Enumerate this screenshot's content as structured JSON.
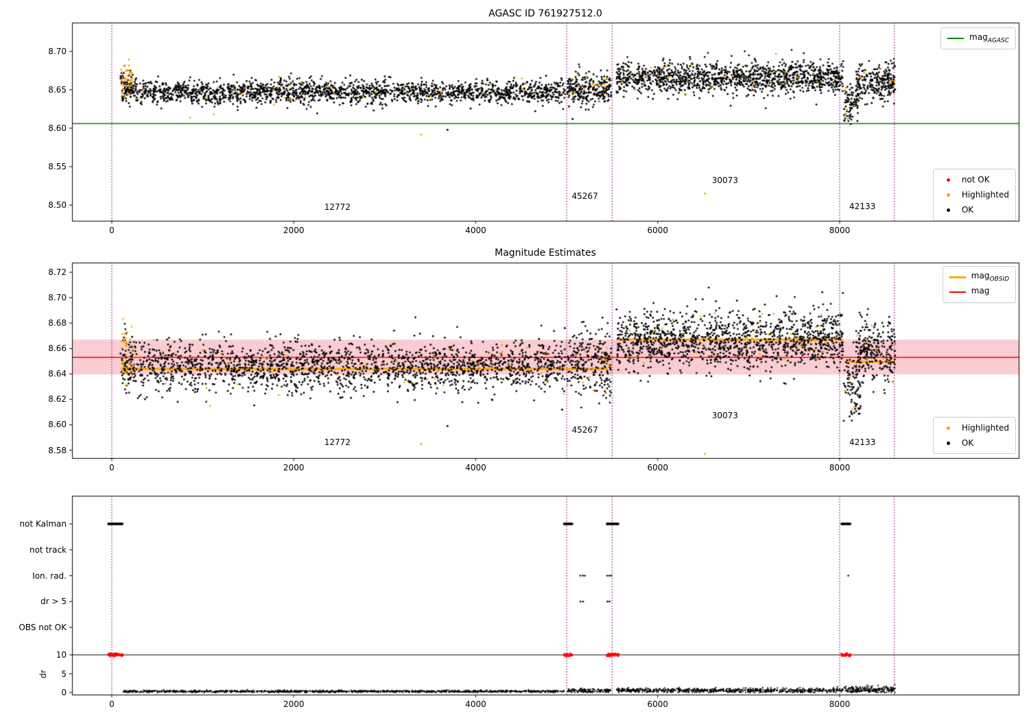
{
  "colors": {
    "ok": "#000000",
    "highlighted": "#ffa500",
    "not_ok": "#ff0000",
    "mag": "#ff0000",
    "mag_agasc": "#008000",
    "mag_obsid": "#ffa500",
    "vline": "#800080",
    "band": "#f9cdd3",
    "dr_line": "#000000"
  },
  "chart_data": [
    {
      "type": "scatter",
      "title": "AGASC ID 761927512.0",
      "xlim": [
        -437,
        9968
      ],
      "ylim": [
        8.4795,
        8.7375
      ],
      "xticks": [
        0,
        2000,
        4000,
        6000,
        8000
      ],
      "xtick_labels": [
        "0",
        "2000",
        "4000",
        "6000",
        "8000"
      ],
      "yticks": [
        8.5,
        8.55,
        8.6,
        8.65,
        8.7
      ],
      "ytick_labels": [
        "8.50",
        "8.55",
        "8.60",
        "8.65",
        "8.70"
      ],
      "vlines": [
        0,
        5000,
        5500,
        8000,
        8600
      ],
      "hline": {
        "value": 8.606,
        "color_key": "mag_agasc"
      },
      "legend_line": {
        "label_main": "mag",
        "label_sub": "AGASC"
      },
      "legend_points": [
        {
          "label": "not OK",
          "color_key": "not_ok"
        },
        {
          "label": "Highlighted",
          "color_key": "highlighted"
        },
        {
          "label": "OK",
          "color_key": "ok"
        }
      ],
      "annotations": [
        {
          "text": "12772",
          "x": 2480,
          "y": 8.497
        },
        {
          "text": "45267",
          "x": 5200,
          "y": 8.512
        },
        {
          "text": "30073",
          "x": 6740,
          "y": 8.532
        },
        {
          "text": "42133",
          "x": 8250,
          "y": 8.498
        }
      ],
      "segments": [
        {
          "x0": 95,
          "x1": 235,
          "n": 65,
          "mean": 8.663,
          "sd": 0.01,
          "hl": 0.6
        },
        {
          "x0": 110,
          "x1": 4985,
          "n": 2000,
          "mean": 8.6465,
          "sd": 0.0075,
          "hl": 0.022
        },
        {
          "x0": 5005,
          "x1": 5490,
          "n": 270,
          "mean": 8.65,
          "sd": 0.0105,
          "hl": 0.05
        },
        {
          "x0": 5545,
          "x1": 8040,
          "n": 1350,
          "mean": 8.666,
          "sd": 0.0105,
          "hl": 0.02
        },
        {
          "x0": 8045,
          "x1": 8230,
          "n": 95,
          "mean": 8.634,
          "sd": 0.0125,
          "hl": 0.04
        },
        {
          "x0": 8180,
          "x1": 8610,
          "n": 260,
          "mean": 8.66,
          "sd": 0.012,
          "hl": 0.05
        }
      ],
      "outliers": [
        {
          "x": 3400,
          "y": 8.592,
          "hl": true
        },
        {
          "x": 3690,
          "y": 8.598,
          "hl": false
        },
        {
          "x": 6520,
          "y": 8.515,
          "hl": true
        },
        {
          "x": 860,
          "y": 8.614,
          "hl": true
        },
        {
          "x": 1120,
          "y": 8.618,
          "hl": true
        },
        {
          "x": 5065,
          "y": 8.612,
          "hl": false
        }
      ]
    },
    {
      "type": "scatter",
      "title": "Magnitude Estimates",
      "xlim": [
        -437,
        9968
      ],
      "ylim": [
        8.5738,
        8.7276
      ],
      "xticks": [
        0,
        2000,
        4000,
        6000,
        8000
      ],
      "xtick_labels": [
        "0",
        "2000",
        "4000",
        "6000",
        "8000"
      ],
      "yticks": [
        8.58,
        8.6,
        8.62,
        8.64,
        8.66,
        8.68,
        8.7,
        8.72
      ],
      "ytick_labels": [
        "8.58",
        "8.60",
        "8.62",
        "8.64",
        "8.66",
        "8.68",
        "8.70",
        "8.72"
      ],
      "vlines": [
        0,
        5000,
        5500,
        8000,
        8600
      ],
      "band": [
        8.6395,
        8.667
      ],
      "mag_line": {
        "value": 8.653,
        "color_key": "mag"
      },
      "obsid_lines": [
        [
          100,
          5450,
          8.644
        ],
        [
          5550,
          8040,
          8.667
        ],
        [
          8050,
          8610,
          8.6495
        ]
      ],
      "legend_lines": [
        {
          "label_main": "mag",
          "label_sub": "OBSID",
          "color_key": "mag_obsid"
        },
        {
          "label_main": "mag",
          "color_key": "mag"
        }
      ],
      "legend_points": [
        {
          "label": "Highlighted",
          "color_key": "highlighted"
        },
        {
          "label": "OK",
          "color_key": "ok"
        }
      ],
      "annotations": [
        {
          "text": "12772",
          "x": 2480,
          "y": 8.586
        },
        {
          "text": "45267",
          "x": 5200,
          "y": 8.596
        },
        {
          "text": "30073",
          "x": 6740,
          "y": 8.607
        },
        {
          "text": "42133",
          "x": 8250,
          "y": 8.586
        }
      ],
      "segments": [
        {
          "x0": 95,
          "x1": 235,
          "n": 65,
          "mean": 8.651,
          "sd": 0.0125,
          "hl": 0.55
        },
        {
          "x0": 110,
          "x1": 4985,
          "n": 2000,
          "mean": 8.6455,
          "sd": 0.0095,
          "hl": 0.03
        },
        {
          "x0": 5005,
          "x1": 5490,
          "n": 270,
          "mean": 8.649,
          "sd": 0.013,
          "hl": 0.06
        },
        {
          "x0": 5545,
          "x1": 8040,
          "n": 1350,
          "mean": 8.667,
          "sd": 0.011,
          "hl": 0.025
        },
        {
          "x0": 8045,
          "x1": 8230,
          "n": 95,
          "mean": 8.631,
          "sd": 0.013,
          "hl": 0.04
        },
        {
          "x0": 8180,
          "x1": 8610,
          "n": 260,
          "mean": 8.658,
          "sd": 0.013,
          "hl": 0.06
        }
      ],
      "outliers": [
        {
          "x": 3400,
          "y": 8.585,
          "hl": true
        },
        {
          "x": 3690,
          "y": 8.599,
          "hl": false
        },
        {
          "x": 6520,
          "y": 8.577,
          "hl": true
        },
        {
          "x": 4950,
          "y": 8.612,
          "hl": false
        },
        {
          "x": 1080,
          "y": 8.615,
          "hl": true
        },
        {
          "x": 8140,
          "y": 8.612,
          "hl": true
        },
        {
          "x": 8160,
          "y": 8.614,
          "hl": true
        }
      ]
    },
    {
      "type": "flags",
      "xlim": [
        -437,
        9968
      ],
      "xticks": [
        0,
        2000,
        4000,
        6000,
        8000
      ],
      "xtick_labels": [
        "0",
        "2000",
        "4000",
        "6000",
        "8000"
      ],
      "vlines": [
        0,
        5000,
        5500,
        8000,
        8600
      ],
      "rows": [
        "not Kalman",
        "not track",
        "Ion. rad.",
        "dr > 5",
        "OBS not OK"
      ],
      "ylabel": "dr",
      "dr_ticks": [
        10,
        5,
        0
      ],
      "dr_tick_labels": [
        "10",
        "5",
        "0"
      ],
      "dr_hline": 10,
      "flags": {
        "not_kalman_intervals": [
          [
            -40,
            120
          ],
          [
            4970,
            5060
          ],
          [
            5440,
            5570
          ],
          [
            8020,
            8120
          ]
        ],
        "not_track_x": [],
        "ion_rad_x": [
          5150,
          5178,
          5200,
          5445,
          5468,
          5490,
          8095
        ],
        "dr_gt5_x": [
          5152,
          5180,
          5448,
          5472
        ],
        "obs_not_ok_x": []
      },
      "dr_red_intervals": [
        [
          -40,
          120
        ],
        [
          4970,
          5060
        ],
        [
          5440,
          5570
        ],
        [
          8020,
          8120
        ]
      ],
      "dr_trace_segments": [
        {
          "x0": 120,
          "x1": 4980,
          "n": 1150,
          "mean": 0.3,
          "sd": 0.15
        },
        {
          "x0": 5010,
          "x1": 5490,
          "n": 140,
          "mean": 0.5,
          "sd": 0.3
        },
        {
          "x0": 5550,
          "x1": 8040,
          "n": 700,
          "mean": 0.55,
          "sd": 0.3
        },
        {
          "x0": 8050,
          "x1": 8610,
          "n": 210,
          "mean": 0.8,
          "sd": 0.45
        }
      ]
    }
  ]
}
